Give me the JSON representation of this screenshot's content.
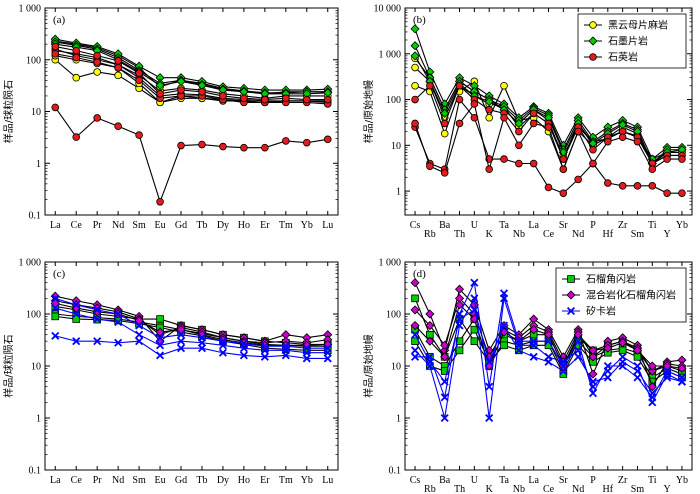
{
  "chart_data": [
    {
      "type": "line",
      "panel_label": "(a)",
      "ylabel": "样品/球粒陨石",
      "log_scale": true,
      "ylim": [
        0.1,
        1000
      ],
      "y_ticks": [
        "0.1",
        "1",
        "10",
        "100",
        "1 000"
      ],
      "x": [
        "La",
        "Ce",
        "Pr",
        "Nd",
        "Sm",
        "Eu",
        "Gd",
        "Tb",
        "Dy",
        "Ho",
        "Er",
        "Tm",
        "Yb",
        "Lu"
      ],
      "series": [
        {
          "group": "biotite",
          "color": "#ffff00",
          "marker": "circle",
          "values": [
            100,
            45,
            58,
            50,
            28,
            15,
            18,
            18,
            16,
            16,
            15,
            16,
            16,
            16
          ]
        },
        {
          "group": "biotite",
          "color": "#ffff00",
          "marker": "circle",
          "values": [
            160,
            120,
            100,
            80,
            50,
            25,
            28,
            26,
            22,
            20,
            18,
            20,
            20,
            20
          ]
        },
        {
          "group": "biotite",
          "color": "#ffff00",
          "marker": "circle",
          "values": [
            230,
            200,
            170,
            120,
            70,
            30,
            40,
            35,
            28,
            25,
            22,
            24,
            24,
            24
          ]
        },
        {
          "group": "biotite",
          "color": "#ffff00",
          "marker": "circle",
          "values": [
            120,
            100,
            85,
            70,
            35,
            15,
            20,
            18,
            17,
            16,
            15,
            16,
            16,
            15
          ]
        },
        {
          "group": "graphite",
          "color": "#00cc00",
          "marker": "diamond",
          "values": [
            250,
            210,
            180,
            130,
            75,
            45,
            45,
            38,
            30,
            28,
            26,
            26,
            26,
            27
          ]
        },
        {
          "group": "graphite",
          "color": "#00cc00",
          "marker": "diamond",
          "values": [
            220,
            190,
            160,
            110,
            62,
            35,
            40,
            33,
            27,
            25,
            23,
            23,
            24,
            24
          ]
        },
        {
          "group": "graphite",
          "color": "#00cc00",
          "marker": "diamond",
          "values": [
            200,
            175,
            150,
            100,
            58,
            32,
            38,
            32,
            26,
            24,
            22,
            22,
            22,
            23
          ]
        },
        {
          "group": "quartzite",
          "color": "#e41a1c",
          "marker": "circle",
          "values": [
            150,
            130,
            110,
            80,
            45,
            20,
            22,
            21,
            18,
            17,
            16,
            16,
            16,
            16
          ]
        },
        {
          "group": "quartzite",
          "color": "#e41a1c",
          "marker": "circle",
          "values": [
            130,
            110,
            90,
            70,
            40,
            18,
            20,
            20,
            17,
            15,
            15,
            15,
            15,
            14
          ]
        },
        {
          "group": "quartzite",
          "color": "#e41a1c",
          "marker": "circle",
          "values": [
            180,
            150,
            120,
            95,
            55,
            22,
            26,
            24,
            20,
            18,
            17,
            18,
            17,
            17
          ]
        },
        {
          "group": "quartzite",
          "color": "#e41a1c",
          "marker": "circle",
          "values": [
            12,
            3.2,
            7.5,
            5.2,
            3.5,
            0.18,
            2.2,
            2.3,
            2.1,
            2.0,
            2.0,
            2.7,
            2.5,
            2.9
          ]
        }
      ]
    },
    {
      "type": "line",
      "panel_label": "(b)",
      "ylabel": "样品/原始地幔",
      "log_scale": true,
      "ylim": [
        0.3,
        10000
      ],
      "y_ticks": [
        "1",
        "10",
        "100",
        "1 000",
        "10 000"
      ],
      "x": [
        "Cs",
        "Rb",
        "Ba",
        "Th",
        "U",
        "K",
        "Ta",
        "Nb",
        "La",
        "Ce",
        "Sr",
        "Nd",
        "P",
        "Hf",
        "Zr",
        "Sm",
        "Ti",
        "Y",
        "Yb"
      ],
      "legend": [
        "黑云母片麻岩",
        "石墨片岩",
        "石英岩"
      ],
      "series": [
        {
          "group": "biotite",
          "color": "#ffff00",
          "marker": "circle",
          "values": [
            200,
            150,
            18,
            150,
            250,
            40,
            200,
            35,
            40,
            20,
            3,
            20,
            10,
            15,
            20,
            15,
            4,
            6,
            6
          ]
        },
        {
          "group": "biotite",
          "color": "#ffff00",
          "marker": "circle",
          "values": [
            800,
            300,
            60,
            250,
            150,
            100,
            60,
            30,
            60,
            35,
            5,
            30,
            10,
            15,
            25,
            18,
            4,
            7,
            7
          ]
        },
        {
          "group": "biotite",
          "color": "#ffff00",
          "marker": "circle",
          "values": [
            500,
            250,
            40,
            200,
            120,
            80,
            70,
            25,
            50,
            30,
            6,
            25,
            12,
            14,
            20,
            16,
            5,
            7,
            7
          ]
        },
        {
          "group": "graphite",
          "color": "#00cc00",
          "marker": "diamond",
          "values": [
            3500,
            400,
            80,
            300,
            200,
            120,
            80,
            40,
            70,
            50,
            10,
            40,
            15,
            25,
            35,
            25,
            5,
            9,
            9
          ]
        },
        {
          "group": "graphite",
          "color": "#00cc00",
          "marker": "diamond",
          "values": [
            1500,
            300,
            60,
            250,
            150,
            100,
            70,
            35,
            65,
            45,
            8,
            35,
            12,
            20,
            30,
            22,
            4,
            8,
            8
          ]
        },
        {
          "group": "graphite",
          "color": "#00cc00",
          "marker": "diamond",
          "values": [
            900,
            250,
            50,
            220,
            120,
            90,
            60,
            30,
            60,
            40,
            7,
            30,
            11,
            18,
            28,
            20,
            4,
            7,
            8
          ]
        },
        {
          "group": "quartzite",
          "color": "#e41a1c",
          "marker": "circle",
          "values": [
            100,
            200,
            30,
            200,
            100,
            60,
            50,
            20,
            50,
            30,
            5,
            25,
            8,
            15,
            20,
            15,
            4,
            6,
            6
          ]
        },
        {
          "group": "quartzite",
          "color": "#e41a1c",
          "marker": "circle",
          "values": [
            25,
            4,
            3,
            100,
            40,
            5,
            5,
            4,
            4,
            1.2,
            0.9,
            1.8,
            4,
            1.5,
            1.3,
            1.3,
            1.3,
            0.9,
            0.9
          ]
        },
        {
          "group": "quartzite",
          "color": "#e41a1c",
          "marker": "circle",
          "values": [
            30,
            3.5,
            2.5,
            30,
            80,
            3,
            40,
            10,
            30,
            25,
            3,
            20,
            4,
            12,
            15,
            12,
            3,
            5,
            5
          ]
        }
      ]
    },
    {
      "type": "line",
      "panel_label": "(c)",
      "ylabel": "样品/球粒陨石",
      "log_scale": true,
      "ylim": [
        0.1,
        1000
      ],
      "y_ticks": [
        "0.1",
        "1",
        "10",
        "100",
        "1 000"
      ],
      "x": [
        "La",
        "Ce",
        "Pr",
        "Nd",
        "Sm",
        "Eu",
        "Gd",
        "Tb",
        "Dy",
        "Ho",
        "Er",
        "Tm",
        "Yb",
        "Lu"
      ],
      "series": [
        {
          "group": "garnet",
          "color": "#00cc00",
          "marker": "square",
          "values": [
            140,
            120,
            100,
            90,
            80,
            80,
            60,
            50,
            40,
            35,
            30,
            28,
            26,
            26
          ]
        },
        {
          "group": "garnet",
          "color": "#00cc00",
          "marker": "square",
          "values": [
            100,
            90,
            85,
            80,
            70,
            60,
            50,
            42,
            35,
            30,
            26,
            25,
            24,
            24
          ]
        },
        {
          "group": "garnet",
          "color": "#00cc00",
          "marker": "square",
          "values": [
            90,
            80,
            78,
            75,
            65,
            55,
            45,
            38,
            30,
            26,
            22,
            21,
            20,
            20
          ]
        },
        {
          "group": "mixed",
          "color": "#cc00cc",
          "marker": "diamond",
          "values": [
            220,
            180,
            150,
            120,
            90,
            30,
            60,
            50,
            40,
            35,
            30,
            40,
            35,
            40
          ]
        },
        {
          "group": "mixed",
          "color": "#cc00cc",
          "marker": "diamond",
          "values": [
            180,
            150,
            130,
            110,
            80,
            40,
            55,
            45,
            35,
            30,
            28,
            30,
            28,
            32
          ]
        },
        {
          "group": "mixed",
          "color": "#cc00cc",
          "marker": "diamond",
          "values": [
            160,
            130,
            110,
            100,
            75,
            45,
            50,
            40,
            32,
            28,
            25,
            25,
            25,
            26
          ]
        },
        {
          "group": "skarn",
          "color": "#0000ff",
          "marker": "x",
          "values": [
            38,
            30,
            30,
            28,
            30,
            16,
            22,
            22,
            18,
            16,
            15,
            16,
            14,
            14
          ]
        },
        {
          "group": "skarn",
          "color": "#0000ff",
          "marker": "x",
          "values": [
            130,
            100,
            80,
            70,
            40,
            25,
            30,
            28,
            25,
            22,
            20,
            20,
            18,
            18
          ]
        },
        {
          "group": "skarn",
          "color": "#0000ff",
          "marker": "x",
          "values": [
            200,
            150,
            120,
            100,
            60,
            35,
            40,
            35,
            30,
            27,
            24,
            24,
            22,
            22
          ]
        }
      ]
    },
    {
      "type": "line",
      "panel_label": "(d)",
      "ylabel": "样品/原始地幔",
      "log_scale": true,
      "ylim": [
        0.1,
        1000
      ],
      "y_ticks": [
        "0.1",
        "1",
        "10",
        "100",
        "1 000"
      ],
      "x": [
        "Cs",
        "Rb",
        "Ba",
        "Th",
        "U",
        "K",
        "Ta",
        "Nb",
        "La",
        "Ce",
        "Sr",
        "Nd",
        "P",
        "Hf",
        "Zr",
        "Sm",
        "Ti",
        "Y",
        "Yb"
      ],
      "legend": [
        "石榴角闪岩",
        "混合岩化石榴角闪岩",
        "矽卡岩"
      ],
      "series": [
        {
          "group": "garnet",
          "color": "#00cc00",
          "marker": "square",
          "values": [
            200,
            40,
            15,
            80,
            30,
            12,
            40,
            30,
            40,
            40,
            10,
            35,
            20,
            25,
            30,
            20,
            8,
            10,
            8
          ]
        },
        {
          "group": "garnet",
          "color": "#00cc00",
          "marker": "square",
          "values": [
            50,
            15,
            10,
            30,
            80,
            10,
            30,
            25,
            30,
            30,
            8,
            30,
            15,
            20,
            22,
            18,
            6,
            9,
            7
          ]
        },
        {
          "group": "garnet",
          "color": "#00cc00",
          "marker": "square",
          "values": [
            30,
            10,
            8,
            20,
            50,
            12,
            25,
            20,
            25,
            25,
            7,
            25,
            12,
            18,
            20,
            15,
            5,
            8,
            6
          ]
        },
        {
          "group": "mixed",
          "color": "#cc00cc",
          "marker": "diamond",
          "values": [
            400,
            100,
            20,
            300,
            150,
            20,
            60,
            40,
            80,
            50,
            15,
            50,
            7,
            30,
            35,
            25,
            4,
            12,
            13
          ]
        },
        {
          "group": "mixed",
          "color": "#cc00cc",
          "marker": "diamond",
          "values": [
            120,
            60,
            25,
            200,
            100,
            15,
            50,
            35,
            60,
            45,
            12,
            45,
            15,
            25,
            30,
            22,
            8,
            11,
            10
          ]
        },
        {
          "group": "mixed",
          "color": "#cc00cc",
          "marker": "diamond",
          "values": [
            60,
            30,
            15,
            150,
            80,
            10,
            45,
            30,
            50,
            40,
            10,
            40,
            20,
            22,
            28,
            20,
            10,
            10,
            9
          ]
        },
        {
          "group": "skarn",
          "color": "#0000ff",
          "marker": "x",
          "values": [
            15,
            15,
            2.5,
            100,
            400,
            4,
            250,
            30,
            30,
            30,
            10,
            30,
            3,
            10,
            10,
            6,
            2.5,
            8,
            6
          ]
        },
        {
          "group": "skarn",
          "color": "#0000ff",
          "marker": "x",
          "values": [
            20,
            10,
            1,
            60,
            200,
            1,
            200,
            25,
            25,
            15,
            12,
            20,
            4,
            8,
            15,
            10,
            2,
            7,
            5
          ]
        },
        {
          "group": "skarn",
          "color": "#0000ff",
          "marker": "x",
          "values": [
            40,
            12,
            5,
            80,
            120,
            12,
            60,
            20,
            15,
            12,
            8,
            15,
            5,
            6,
            12,
            8,
            3,
            6,
            5
          ]
        }
      ]
    }
  ]
}
